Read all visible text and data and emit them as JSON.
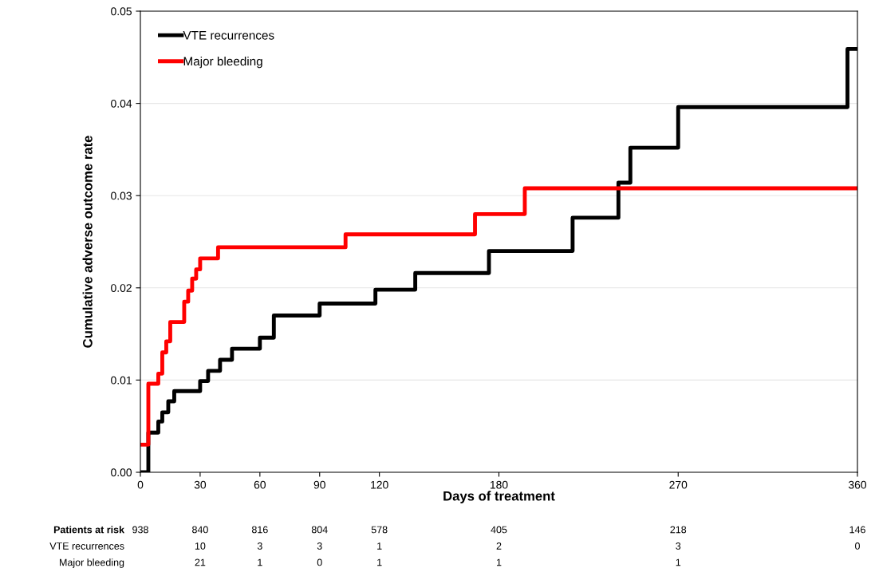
{
  "chart_data": {
    "type": "step",
    "xlabel": "Days of treatment",
    "ylabel": "Cumulative adverse outcome rate",
    "xlim": [
      0,
      360
    ],
    "xticks": [
      0,
      30,
      60,
      90,
      120,
      180,
      270,
      360
    ],
    "ylim": [
      0,
      0.05
    ],
    "yticks": [
      {
        "value": 0,
        "label": "0.00"
      },
      {
        "value": 0.01,
        "label": "0.01"
      },
      {
        "value": 0.02,
        "label": "0.02"
      },
      {
        "value": 0.03,
        "label": "0.03"
      },
      {
        "value": 0.04,
        "label": "0.04"
      },
      {
        "value": 0.05,
        "label": "0.05"
      }
    ],
    "grid": "y",
    "legend": "top left",
    "line_style": "solid",
    "marker": "none",
    "series": [
      {
        "name": "VTE recurrences",
        "color": "#000000",
        "x": [
          1,
          4,
          9,
          11,
          14,
          17,
          30,
          34,
          40,
          46,
          60,
          67,
          90,
          118,
          138,
          175,
          217,
          240,
          246,
          270,
          355,
          360
        ],
        "values": [
          0,
          0.0043,
          0.0055,
          0.0065,
          0.0077,
          0.0088,
          0.0099,
          0.011,
          0.0122,
          0.0134,
          0.0146,
          0.017,
          0.0183,
          0.0198,
          0.0216,
          0.024,
          0.0276,
          0.0314,
          0.0352,
          0.0396,
          0.0459,
          0.0459
        ]
      },
      {
        "name": "Major bleeding",
        "color": "#ff0000",
        "x": [
          0,
          4,
          9,
          11,
          13,
          15,
          22,
          24,
          26,
          28,
          30,
          39,
          103,
          168,
          193,
          360
        ],
        "values": [
          0.003,
          0.0096,
          0.0107,
          0.013,
          0.0142,
          0.0163,
          0.0185,
          0.0197,
          0.021,
          0.022,
          0.0232,
          0.0244,
          0.0258,
          0.028,
          0.0308,
          0.0308
        ]
      }
    ],
    "annotations": [
      "Patients at risk",
      "938",
      "840",
      "816",
      "804",
      "578",
      "405",
      "218",
      "146",
      "VTE recurrences",
      "10",
      "3",
      "3",
      "1",
      "2",
      "3",
      "0",
      "Major bleeding",
      "21",
      "1",
      "0",
      "1",
      "1",
      "1"
    ]
  }
}
